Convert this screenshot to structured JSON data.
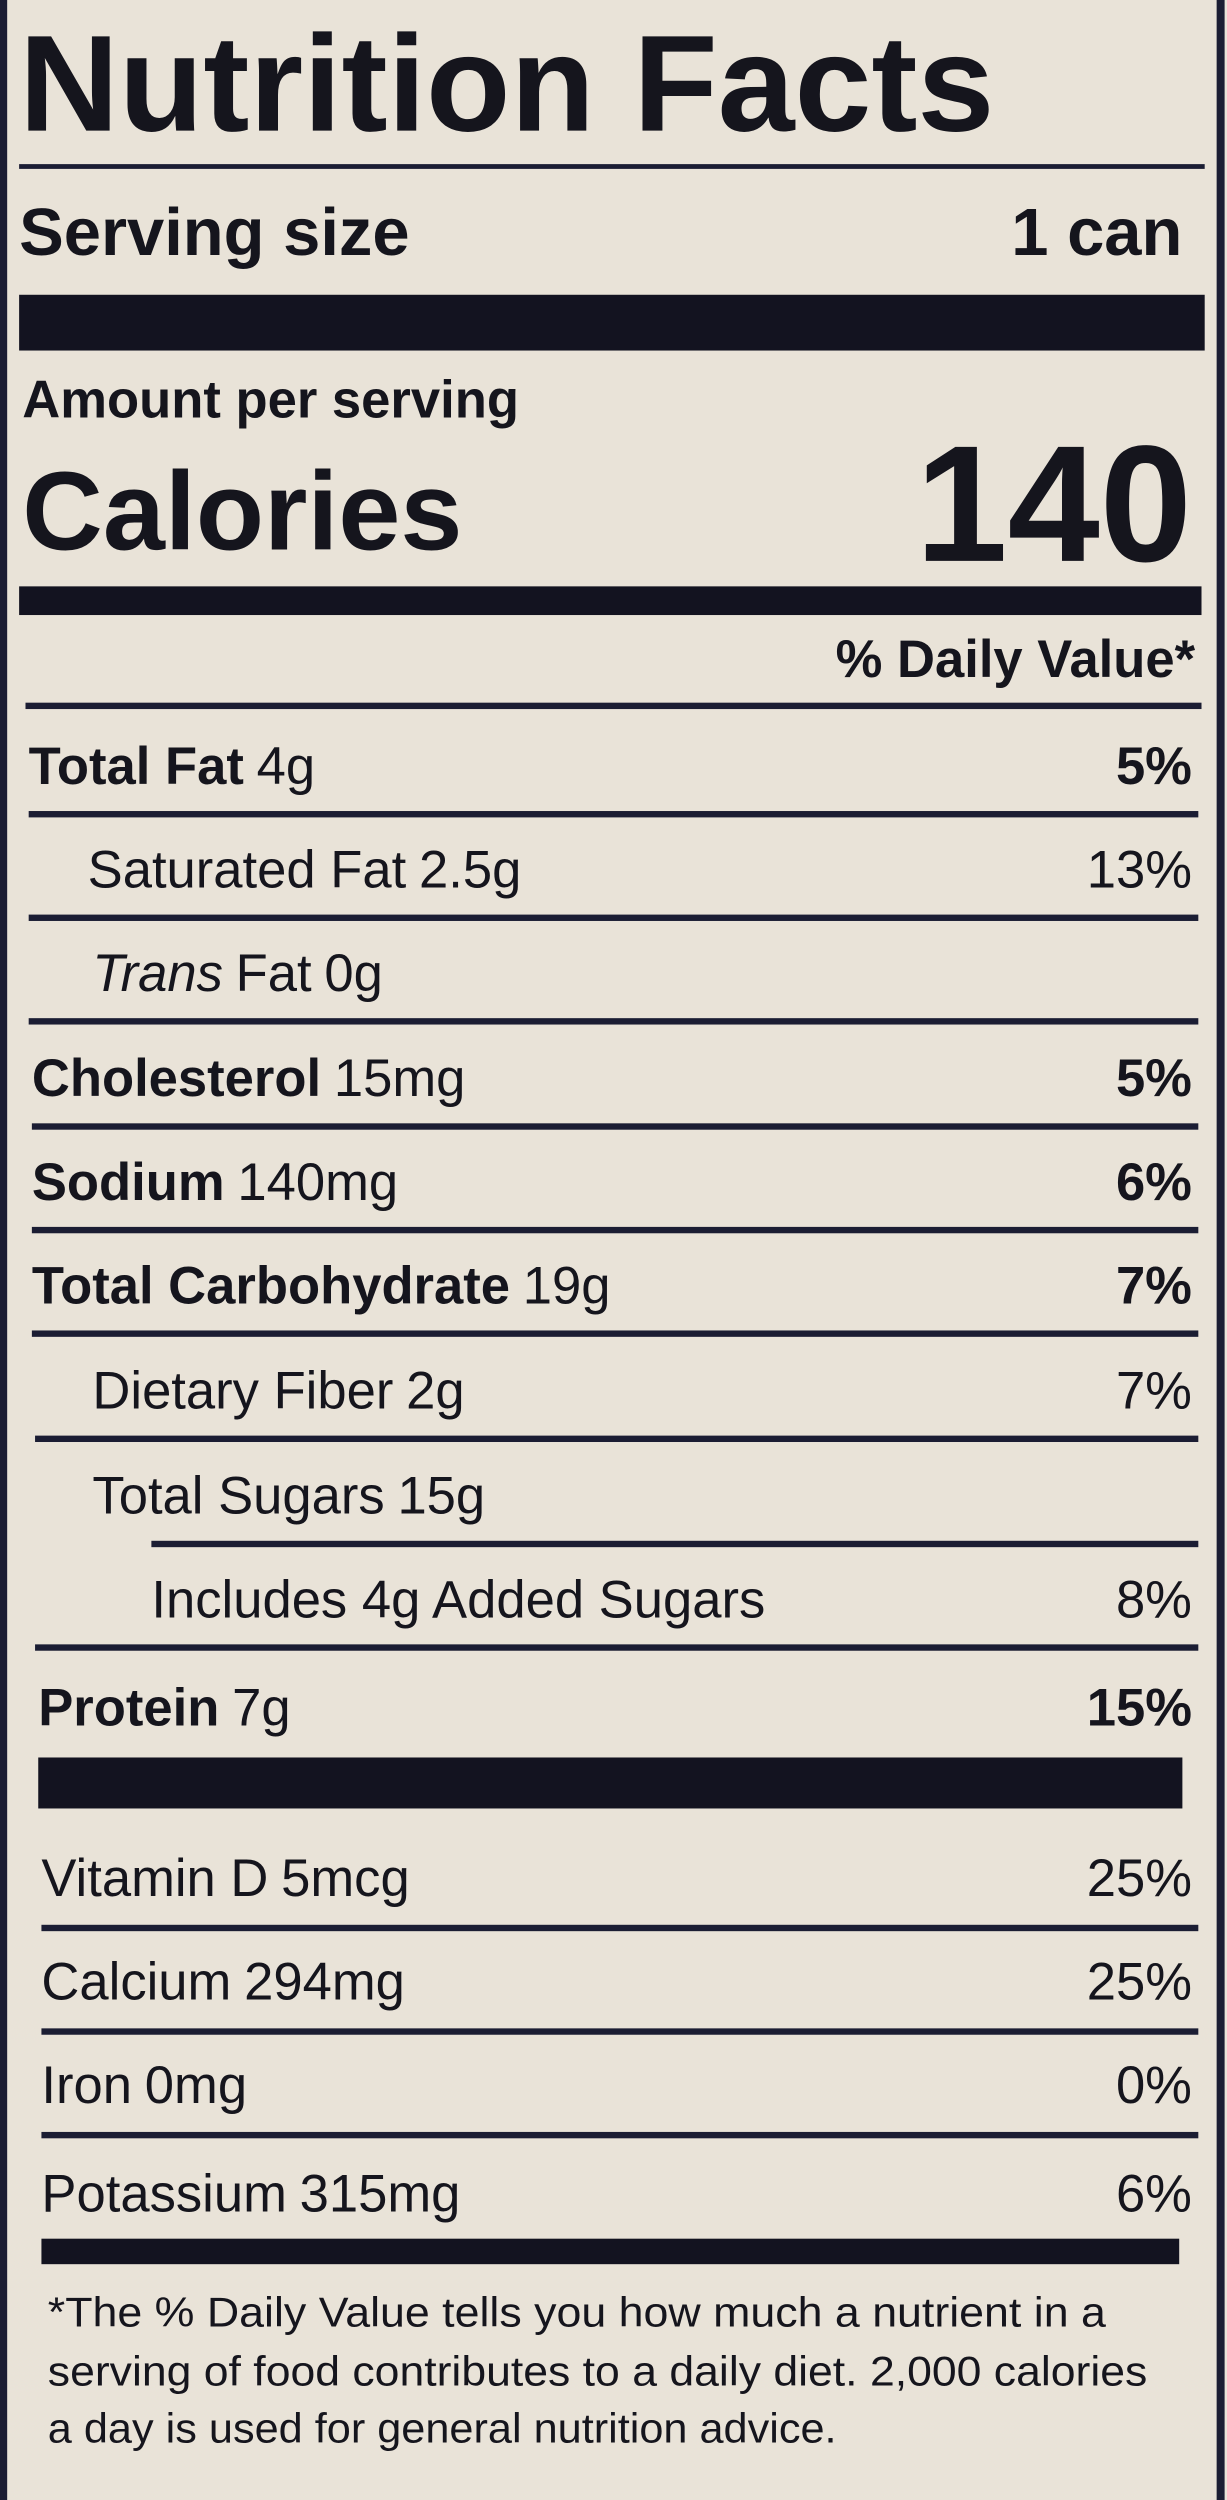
{
  "title": "Nutrition Facts",
  "serving": {
    "label": "Serving size",
    "value": "1 can"
  },
  "amount_per_serving": "Amount per serving",
  "calories": {
    "label": "Calories",
    "value": "140"
  },
  "dv_header": "% Daily Value*",
  "nutrients": [
    {
      "name": "Total Fat",
      "amount": "4g",
      "dv": "5%"
    },
    {
      "name": "Saturated Fat",
      "amount": "2.5g",
      "dv": "13%"
    },
    {
      "prefix": "Trans",
      "name": "Fat",
      "amount": "0g"
    },
    {
      "name": "Cholesterol",
      "amount": "15mg",
      "dv": "5%"
    },
    {
      "name": "Sodium",
      "amount": "140mg",
      "dv": "6%"
    },
    {
      "name": "Total Carbohydrate",
      "amount": "19g",
      "dv": "7%"
    },
    {
      "name": "Dietary Fiber",
      "amount": "2g",
      "dv": "7%"
    },
    {
      "name": "Total Sugars",
      "amount": "15g"
    },
    {
      "name": "Includes 4g Added Sugars",
      "dv": "8%"
    },
    {
      "name": "Protein",
      "amount": "7g",
      "dv": "15%"
    }
  ],
  "vitamins": [
    {
      "name": "Vitamin D",
      "amount": "5mcg",
      "dv": "25%"
    },
    {
      "name": "Calcium",
      "amount": "294mg",
      "dv": "25%"
    },
    {
      "name": "Iron",
      "amount": "0mg",
      "dv": "0%"
    },
    {
      "name": "Potassium",
      "amount": "315mg",
      "dv": "6%"
    }
  ],
  "footnote": [
    "*The % Daily Value tells you how much a nutrient in a",
    "serving of food contributes to a daily diet. 2,000 calories",
    "a day is used for general nutrition advice."
  ]
}
